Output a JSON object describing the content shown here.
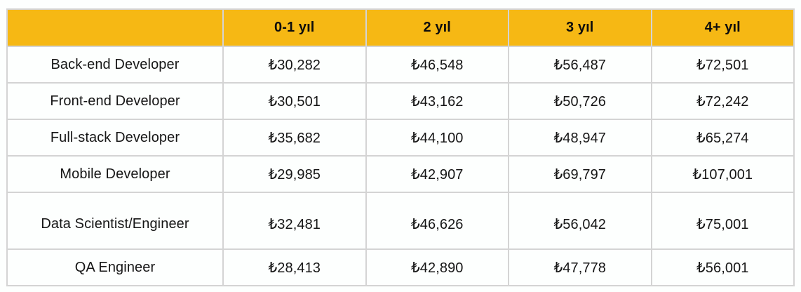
{
  "table": {
    "headers": [
      "",
      "0-1 yıl",
      "2 yıl",
      "3 yıl",
      "4+ yıl"
    ],
    "rows": [
      {
        "role": "Back-end Developer",
        "values": [
          "₺30,282",
          "₺46,548",
          "₺56,487",
          "₺72,501"
        ]
      },
      {
        "role": "Front-end Developer",
        "values": [
          "₺30,501",
          "₺43,162",
          "₺50,726",
          "₺72,242"
        ]
      },
      {
        "role": "Full-stack Developer",
        "values": [
          "₺35,682",
          "₺44,100",
          "₺48,947",
          "₺65,274"
        ]
      },
      {
        "role": "Mobile Developer",
        "values": [
          "₺29,985",
          "₺42,907",
          "₺69,797",
          "₺107,001"
        ]
      },
      {
        "role": "Data Scientist/Engineer",
        "values": [
          "₺32,481",
          "₺46,626",
          "₺56,042",
          "₺75,001"
        ]
      },
      {
        "role": "QA Engineer",
        "values": [
          "₺28,413",
          "₺42,890",
          "₺47,778",
          "₺56,001"
        ]
      }
    ]
  },
  "colors": {
    "header_background": "#f6b814",
    "grid_border": "#d4d4d4",
    "text": "#161616",
    "cell_background": "#fdfffe"
  },
  "chart_data": {
    "type": "table",
    "title": "",
    "categories": [
      "0-1 yıl",
      "2 yıl",
      "3 yıl",
      "4+ yıl"
    ],
    "series": [
      {
        "name": "Back-end Developer",
        "values": [
          30282,
          46548,
          56487,
          72501
        ]
      },
      {
        "name": "Front-end Developer",
        "values": [
          30501,
          43162,
          50726,
          72242
        ]
      },
      {
        "name": "Full-stack Developer",
        "values": [
          35682,
          44100,
          48947,
          65274
        ]
      },
      {
        "name": "Mobile Developer",
        "values": [
          29985,
          42907,
          69797,
          107001
        ]
      },
      {
        "name": "Data Scientist/Engineer",
        "values": [
          32481,
          46626,
          56042,
          75001
        ]
      },
      {
        "name": "QA Engineer",
        "values": [
          28413,
          42890,
          47778,
          56001
        ]
      }
    ],
    "currency_symbol": "₺",
    "legend_position": "none",
    "grid": true
  }
}
